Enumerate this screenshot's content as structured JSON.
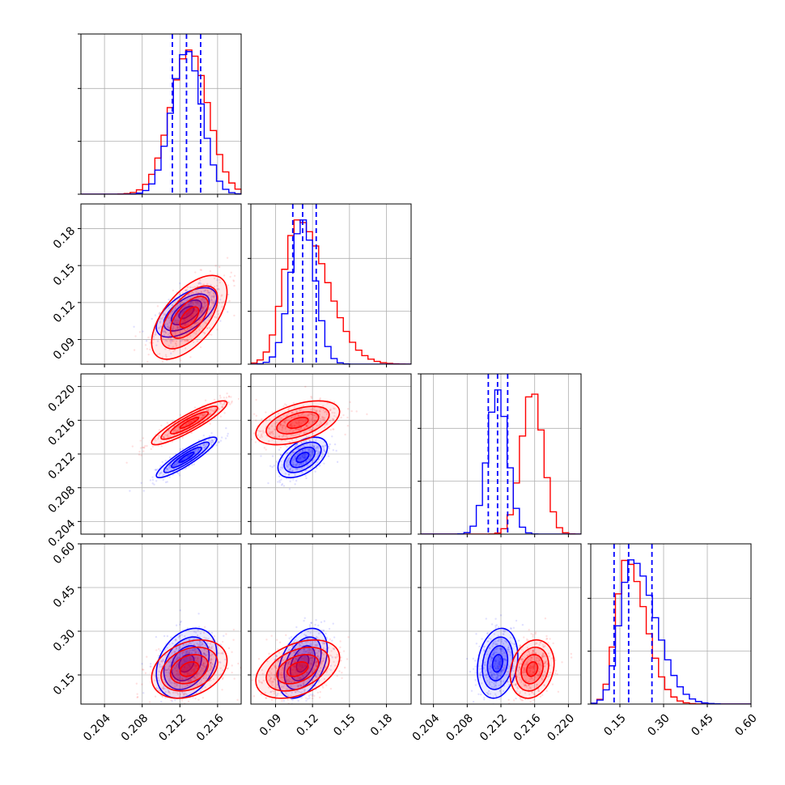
{
  "chart_data": {
    "type": "corner",
    "grid": true,
    "series_colors": {
      "blue": "#0000ff",
      "red": "#ff0000"
    },
    "parameters": [
      {
        "ticks": [
          0.204,
          0.208,
          0.212,
          0.216
        ],
        "tick_labels": [
          "0.204",
          "0.208",
          "0.212",
          "0.216"
        ],
        "range": [
          0.2015,
          0.2185
        ]
      },
      {
        "ticks": [
          0.09,
          0.12,
          0.15,
          0.18
        ],
        "tick_labels": [
          "0.09",
          "0.12",
          "0.15",
          "0.18"
        ],
        "range": [
          0.07,
          0.2
        ]
      },
      {
        "ticks": [
          0.204,
          0.208,
          0.212,
          0.216,
          0.22
        ],
        "tick_labels": [
          "0.204",
          "0.208",
          "0.212",
          "0.216",
          "0.220"
        ],
        "range": [
          0.2025,
          0.2215
        ]
      },
      {
        "ticks": [
          0.15,
          0.3,
          0.45,
          0.6
        ],
        "tick_labels": [
          "0.15",
          "0.30",
          "0.45",
          "0.60"
        ],
        "range": [
          0.05,
          0.6
        ]
      }
    ],
    "quantiles": {
      "blue": [
        [
          0.2112,
          0.2127,
          0.2142
        ],
        [
          0.104,
          0.112,
          0.123
        ],
        [
          0.2105,
          0.2116,
          0.2128
        ],
        [
          0.13,
          0.18,
          0.26
        ]
      ]
    },
    "distributions": {
      "blue": {
        "mean": [
          0.2127,
          0.112,
          0.2116,
          0.19
        ],
        "sd": [
          0.0016,
          0.01,
          0.0012,
          0.06
        ],
        "corr": [
          [
            1,
            0.6,
            0.9,
            0.3
          ],
          [
            0.6,
            1,
            0.5,
            0.4
          ],
          [
            0.9,
            0.5,
            1,
            0.2
          ],
          [
            0.3,
            0.4,
            0.2,
            1
          ]
        ]
      },
      "red": {
        "mean": [
          0.213,
          0.108,
          0.2157,
          0.17
        ],
        "sd": [
          0.002,
          0.017,
          0.0013,
          0.05
        ],
        "corr": [
          [
            1,
            0.6,
            0.9,
            0.3
          ],
          [
            0.6,
            1,
            0.5,
            0.4
          ],
          [
            0.9,
            0.5,
            1,
            0.2
          ],
          [
            0.3,
            0.4,
            0.2,
            1
          ]
        ]
      }
    },
    "contour_levels": [
      0.5,
      1.0,
      1.5,
      2.0
    ]
  }
}
